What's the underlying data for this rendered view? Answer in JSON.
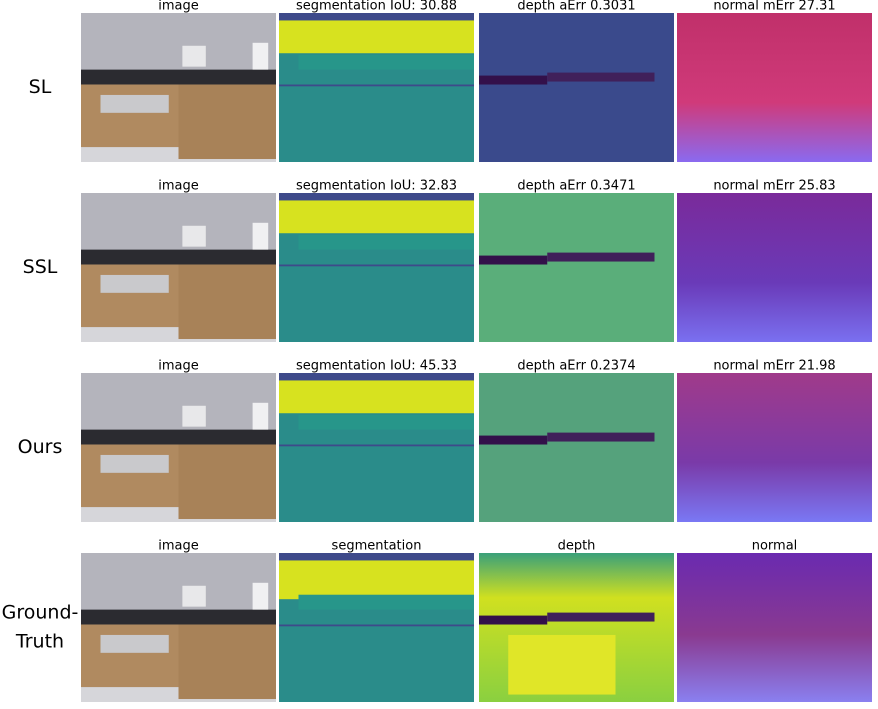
{
  "rows": [
    {
      "label": [
        "SL"
      ],
      "panels": [
        "image",
        "segmentation IoU: 30.88",
        "depth aErr 0.3031",
        "normal mErr 27.31"
      ]
    },
    {
      "label": [
        "SSL"
      ],
      "panels": [
        "image",
        "segmentation IoU: 32.83",
        "depth aErr 0.3471",
        "normal mErr 25.83"
      ]
    },
    {
      "label": [
        "Ours"
      ],
      "panels": [
        "image",
        "segmentation IoU: 45.33",
        "depth aErr 0.2374",
        "normal mErr 21.98"
      ]
    },
    {
      "label": [
        "Ground-",
        "Truth"
      ],
      "panels": [
        "image",
        "segmentation",
        "depth",
        "normal"
      ]
    }
  ]
}
